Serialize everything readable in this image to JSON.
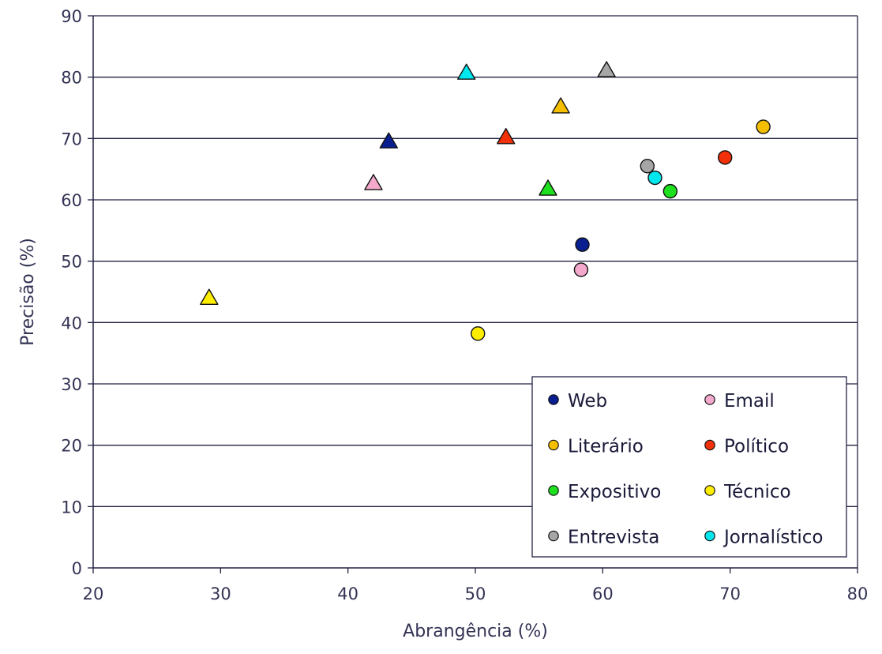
{
  "chart_data": {
    "type": "scatter",
    "xlabel": "Abrangência (%)",
    "ylabel": "Precisão (%)",
    "xlim": [
      20,
      80
    ],
    "ylim": [
      0,
      90
    ],
    "xticks": [
      20,
      30,
      40,
      50,
      60,
      70,
      80
    ],
    "yticks": [
      0,
      10,
      20,
      30,
      40,
      50,
      60,
      70,
      80,
      90
    ],
    "grid": "horizontal",
    "legend_position": "bottom-right",
    "series": [
      {
        "name": "Web",
        "color": "#0a1f8f",
        "points": [
          {
            "x": 58.4,
            "y": 52.7,
            "marker": "circle"
          },
          {
            "x": 43.2,
            "y": 69.4,
            "marker": "triangle"
          }
        ]
      },
      {
        "name": "Email",
        "color": "#f4a9cc",
        "points": [
          {
            "x": 58.3,
            "y": 48.6,
            "marker": "circle"
          },
          {
            "x": 42.0,
            "y": 62.6,
            "marker": "triangle"
          }
        ]
      },
      {
        "name": "Literário",
        "color": "#f5bf00",
        "points": [
          {
            "x": 72.6,
            "y": 71.9,
            "marker": "circle"
          },
          {
            "x": 56.7,
            "y": 75.1,
            "marker": "triangle"
          }
        ]
      },
      {
        "name": "Político",
        "color": "#f2300a",
        "points": [
          {
            "x": 69.6,
            "y": 66.9,
            "marker": "circle"
          },
          {
            "x": 52.4,
            "y": 70.1,
            "marker": "triangle"
          }
        ]
      },
      {
        "name": "Expositivo",
        "color": "#1fe01f",
        "points": [
          {
            "x": 65.3,
            "y": 61.4,
            "marker": "circle"
          },
          {
            "x": 55.7,
            "y": 61.7,
            "marker": "triangle"
          }
        ]
      },
      {
        "name": "Técnico",
        "color": "#ffee00",
        "points": [
          {
            "x": 50.2,
            "y": 38.2,
            "marker": "circle"
          },
          {
            "x": 29.1,
            "y": 43.9,
            "marker": "triangle"
          }
        ]
      },
      {
        "name": "Entrevista",
        "color": "#a6a6a6",
        "points": [
          {
            "x": 63.5,
            "y": 65.5,
            "marker": "circle"
          },
          {
            "x": 60.3,
            "y": 81.0,
            "marker": "triangle"
          }
        ]
      },
      {
        "name": "Jornalístico",
        "color": "#00e7ee",
        "points": [
          {
            "x": 64.1,
            "y": 63.6,
            "marker": "circle"
          },
          {
            "x": 49.3,
            "y": 80.6,
            "marker": "triangle"
          }
        ]
      }
    ]
  }
}
